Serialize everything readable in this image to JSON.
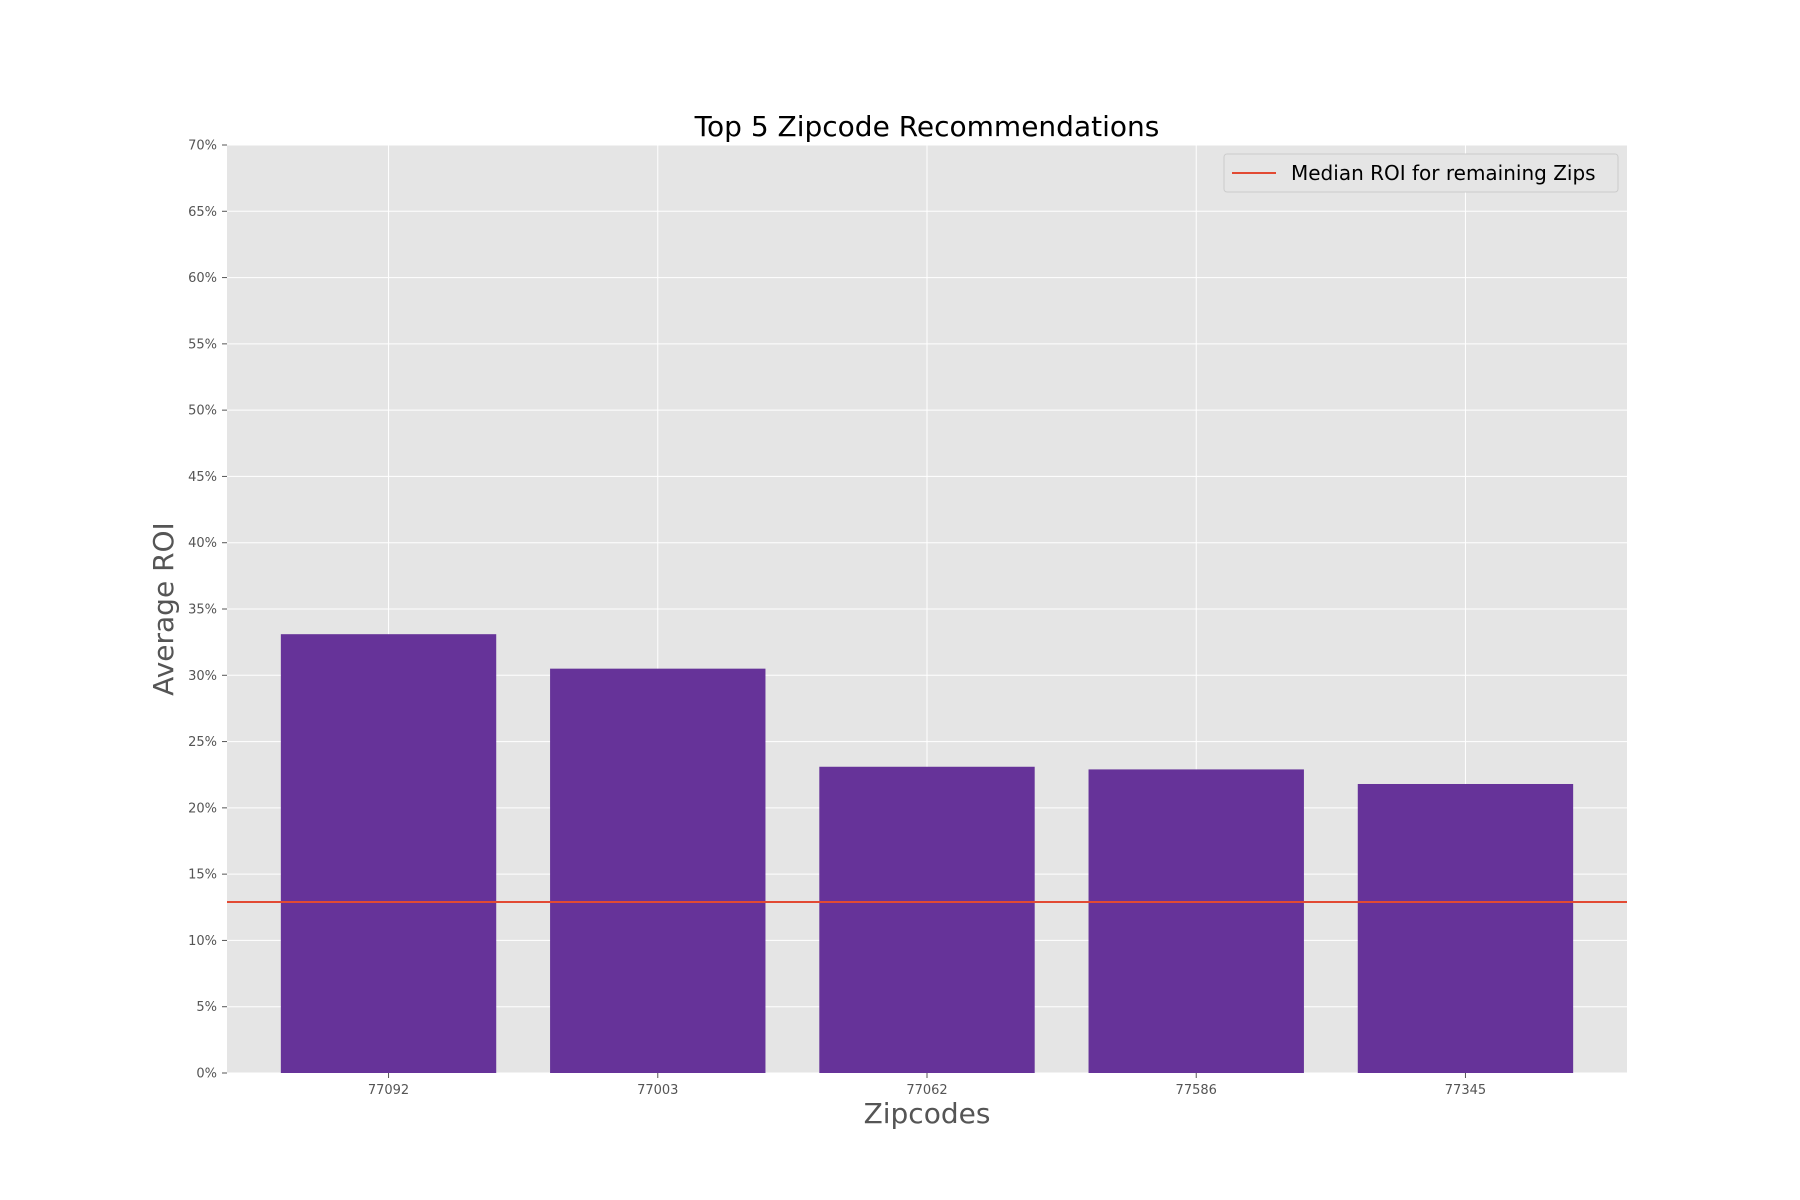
{
  "chart_data": {
    "type": "bar",
    "title": "Top 5 Zipcode Recommendations",
    "xlabel": "Zipcodes",
    "ylabel": "Average ROI",
    "categories": [
      "77092",
      "77003",
      "77062",
      "77586",
      "77345"
    ],
    "values": [
      33.1,
      30.5,
      23.1,
      22.9,
      21.8
    ],
    "ylim": [
      0,
      70
    ],
    "yticks": [
      0,
      5,
      10,
      15,
      20,
      25,
      30,
      35,
      40,
      45,
      50,
      55,
      60,
      65,
      70
    ],
    "ytick_labels": [
      "0%",
      "5%",
      "10%",
      "15%",
      "20%",
      "25%",
      "30%",
      "35%",
      "40%",
      "45%",
      "50%",
      "55%",
      "60%",
      "65%",
      "70%"
    ],
    "reference_line": {
      "label": "Median ROI for remaining Zips",
      "value": 12.9,
      "color": "#e24a33"
    },
    "bar_color": "#663399",
    "background_color": "#e5e5e5",
    "grid": true,
    "legend": {
      "placement": "top-right",
      "entries": [
        "Median ROI for remaining Zips"
      ]
    }
  }
}
